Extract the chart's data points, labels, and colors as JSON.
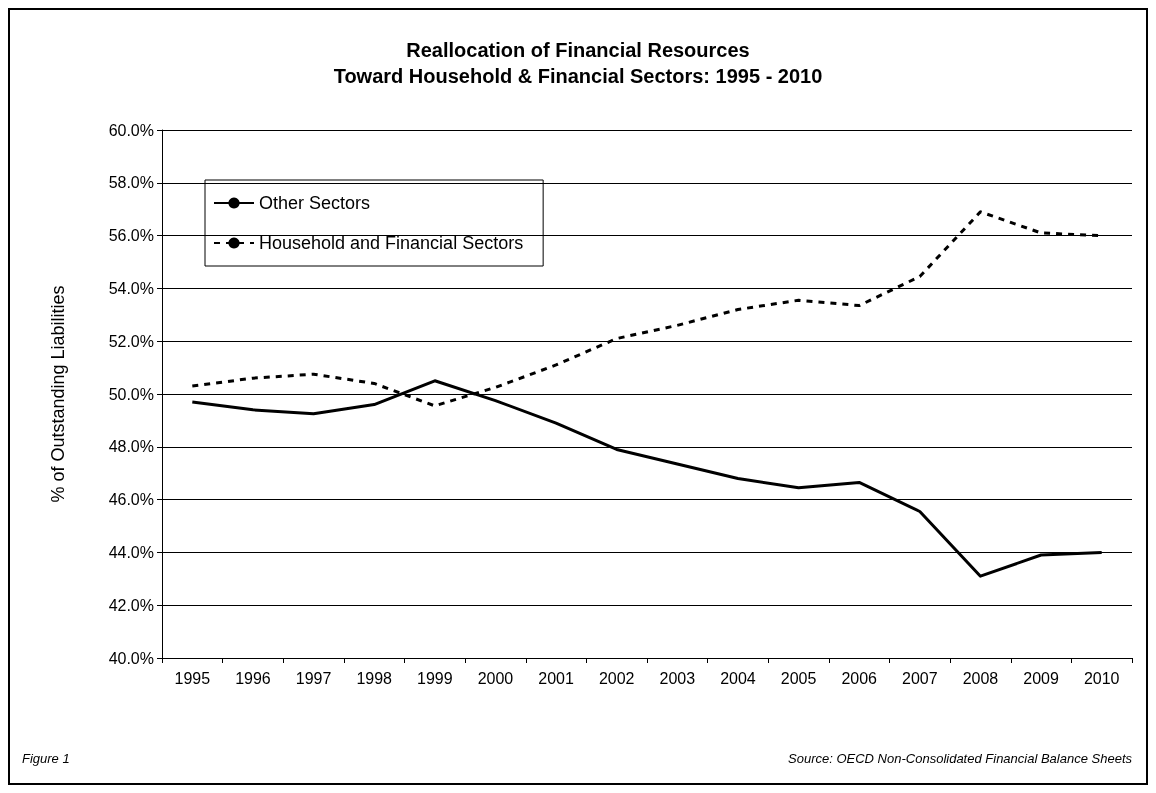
{
  "chart_data": {
    "type": "line",
    "title": "Reallocation of Financial Resources\nToward Household & Financial Sectors: 1995 - 2010",
    "ylabel": "% of Outstanding Liabilities",
    "categories": [
      "1995",
      "1996",
      "1997",
      "1998",
      "1999",
      "2000",
      "2001",
      "2002",
      "2003",
      "2004",
      "2005",
      "2006",
      "2007",
      "2008",
      "2009",
      "2010"
    ],
    "series": [
      {
        "name": "Other Sectors",
        "color": "#000000",
        "line_style": "solid",
        "values": [
          49.7,
          49.4,
          49.25,
          49.6,
          50.5,
          49.75,
          48.9,
          47.9,
          47.35,
          46.8,
          46.45,
          46.65,
          45.55,
          43.1,
          43.9,
          44.0
        ]
      },
      {
        "name": "Household and Financial Sectors",
        "color": "#000000",
        "line_style": "dashed",
        "values": [
          50.3,
          50.6,
          50.75,
          50.4,
          49.55,
          50.25,
          51.1,
          52.1,
          52.6,
          53.2,
          53.55,
          53.35,
          54.45,
          56.9,
          56.1,
          56.0
        ]
      }
    ],
    "ylim": [
      40,
      60
    ],
    "yticks": [
      {
        "value": 40,
        "label": "40.0%"
      },
      {
        "value": 42,
        "label": "42.0%"
      },
      {
        "value": 44,
        "label": "44.0%"
      },
      {
        "value": 46,
        "label": "46.0%"
      },
      {
        "value": 48,
        "label": "48.0%"
      },
      {
        "value": 50,
        "label": "50.0%"
      },
      {
        "value": 52,
        "label": "52.0%"
      },
      {
        "value": 54,
        "label": "54.0%"
      },
      {
        "value": 56,
        "label": "56.0%"
      },
      {
        "value": 58,
        "label": "58.0%"
      },
      {
        "value": 60,
        "label": "60.0%"
      }
    ],
    "grid": "y",
    "legend": "top left",
    "marker": "none",
    "annotations": [
      "Figure 1",
      "Source: OECD Non-Consolidated Financial Balance Sheets"
    ]
  }
}
